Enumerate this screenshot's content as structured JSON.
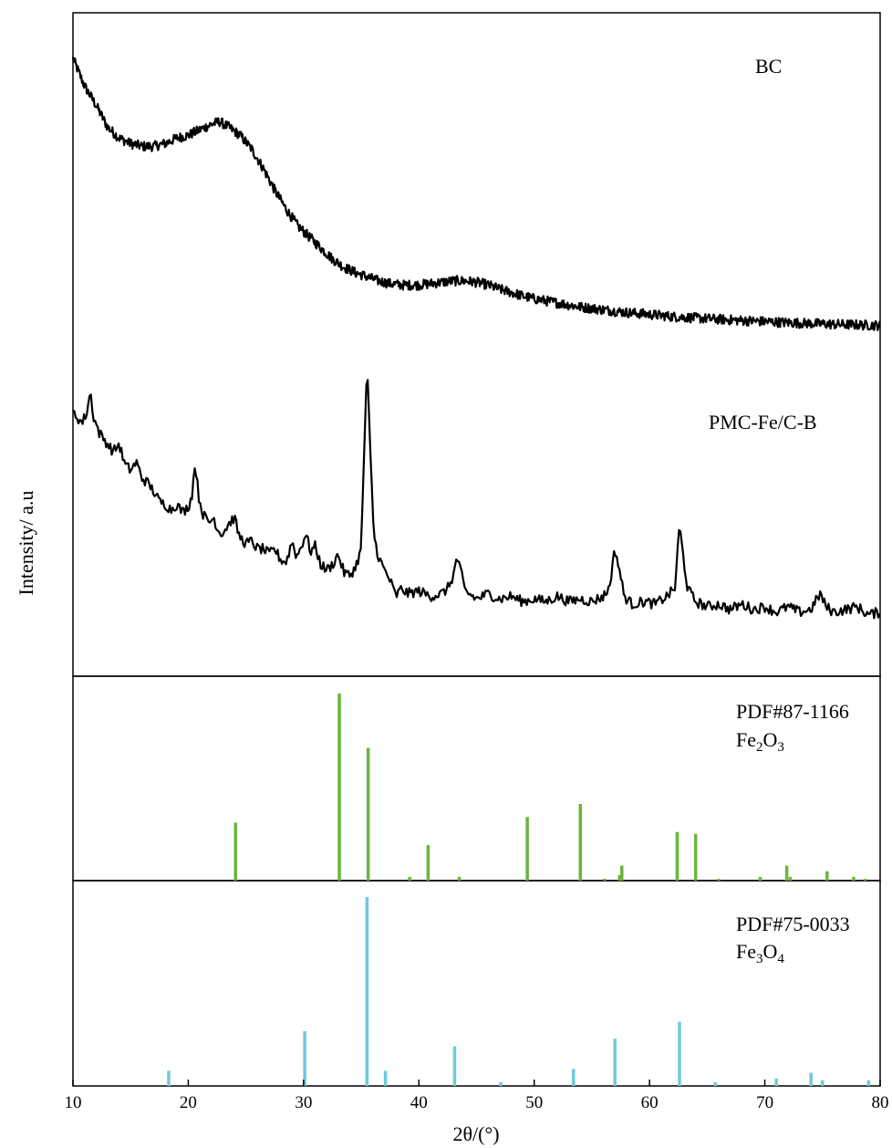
{
  "chart_data": {
    "type": "line",
    "xlabel": "2θ/(°)",
    "ylabel": "Intensity/ a.u",
    "xlim": [
      10,
      80
    ],
    "xticks": [
      10,
      20,
      30,
      40,
      50,
      60,
      70,
      80
    ],
    "grid": false,
    "colors": {
      "trace": "#000000",
      "fe2o3": "#6ab53c",
      "fe3o4": "#6ecadb"
    },
    "panels": [
      {
        "type": "line",
        "series": [
          {
            "name": "BC",
            "points": [
              [
                10.0,
                1.0
              ],
              [
                11.0,
                0.9
              ],
              [
                12.0,
                0.83
              ],
              [
                13.0,
                0.75
              ],
              [
                14.0,
                0.71
              ],
              [
                15.0,
                0.69
              ],
              [
                16.0,
                0.68
              ],
              [
                17.0,
                0.68
              ],
              [
                18.0,
                0.69
              ],
              [
                19.0,
                0.71
              ],
              [
                20.0,
                0.72
              ],
              [
                21.0,
                0.74
              ],
              [
                22.0,
                0.76
              ],
              [
                22.7,
                0.77
              ],
              [
                23.5,
                0.75
              ],
              [
                24.5,
                0.72
              ],
              [
                25.5,
                0.67
              ],
              [
                26.5,
                0.6
              ],
              [
                27.5,
                0.52
              ],
              [
                28.5,
                0.45
              ],
              [
                29.5,
                0.39
              ],
              [
                30.5,
                0.35
              ],
              [
                31.5,
                0.31
              ],
              [
                32.5,
                0.27
              ],
              [
                33.5,
                0.24
              ],
              [
                34.5,
                0.22
              ],
              [
                35.5,
                0.205
              ],
              [
                36.5,
                0.19
              ],
              [
                37.5,
                0.18
              ],
              [
                38.5,
                0.175
              ],
              [
                40.0,
                0.175
              ],
              [
                41.0,
                0.18
              ],
              [
                42.0,
                0.185
              ],
              [
                43.0,
                0.19
              ],
              [
                44.0,
                0.19
              ],
              [
                45.0,
                0.185
              ],
              [
                46.0,
                0.175
              ],
              [
                47.0,
                0.16
              ],
              [
                48.0,
                0.148
              ],
              [
                49.0,
                0.135
              ],
              [
                50.0,
                0.125
              ],
              [
                52.0,
                0.11
              ],
              [
                54.0,
                0.095
              ],
              [
                56.0,
                0.085
              ],
              [
                58.0,
                0.075
              ],
              [
                60.0,
                0.068
              ],
              [
                62.0,
                0.06
              ],
              [
                64.0,
                0.055
              ],
              [
                66.0,
                0.05
              ],
              [
                68.0,
                0.046
              ],
              [
                70.0,
                0.042
              ],
              [
                72.0,
                0.038
              ],
              [
                74.0,
                0.035
              ],
              [
                76.0,
                0.032
              ],
              [
                78.0,
                0.03
              ],
              [
                80.0,
                0.028
              ]
            ]
          },
          {
            "name": "PMC-Fe/C-B",
            "points": [
              [
                10.0,
                0.82
              ],
              [
                10.8,
                0.78
              ],
              [
                11.2,
                0.82
              ],
              [
                11.5,
                0.9
              ],
              [
                11.8,
                0.8
              ],
              [
                12.3,
                0.74
              ],
              [
                13.0,
                0.7
              ],
              [
                13.5,
                0.67
              ],
              [
                14.0,
                0.7
              ],
              [
                14.5,
                0.62
              ],
              [
                15.0,
                0.6
              ],
              [
                15.5,
                0.63
              ],
              [
                16.0,
                0.57
              ],
              [
                16.5,
                0.55
              ],
              [
                17.0,
                0.52
              ],
              [
                17.5,
                0.48
              ],
              [
                18.0,
                0.47
              ],
              [
                18.5,
                0.45
              ],
              [
                19.0,
                0.47
              ],
              [
                19.5,
                0.44
              ],
              [
                20.0,
                0.46
              ],
              [
                20.3,
                0.5
              ],
              [
                20.6,
                0.63
              ],
              [
                20.9,
                0.5
              ],
              [
                21.3,
                0.43
              ],
              [
                21.8,
                0.4
              ],
              [
                22.2,
                0.42
              ],
              [
                22.6,
                0.37
              ],
              [
                23.0,
                0.36
              ],
              [
                23.4,
                0.39
              ],
              [
                24.0,
                0.42
              ],
              [
                24.4,
                0.35
              ],
              [
                25.0,
                0.32
              ],
              [
                25.5,
                0.33
              ],
              [
                26.0,
                0.3
              ],
              [
                26.5,
                0.3
              ],
              [
                27.0,
                0.28
              ],
              [
                27.5,
                0.3
              ],
              [
                28.0,
                0.26
              ],
              [
                28.5,
                0.25
              ],
              [
                29.0,
                0.33
              ],
              [
                29.4,
                0.27
              ],
              [
                29.8,
                0.31
              ],
              [
                30.2,
                0.36
              ],
              [
                30.6,
                0.29
              ],
              [
                31.0,
                0.31
              ],
              [
                31.5,
                0.24
              ],
              [
                32.0,
                0.22
              ],
              [
                32.5,
                0.24
              ],
              [
                33.0,
                0.28
              ],
              [
                33.5,
                0.21
              ],
              [
                34.0,
                0.2
              ],
              [
                34.5,
                0.23
              ],
              [
                35.0,
                0.3
              ],
              [
                35.2,
                0.6
              ],
              [
                35.5,
                1.0
              ],
              [
                35.8,
                0.65
              ],
              [
                36.1,
                0.35
              ],
              [
                36.5,
                0.27
              ],
              [
                37.0,
                0.22
              ],
              [
                37.5,
                0.18
              ],
              [
                38.0,
                0.12
              ],
              [
                38.5,
                0.15
              ],
              [
                39.0,
                0.13
              ],
              [
                40.0,
                0.14
              ],
              [
                41.0,
                0.12
              ],
              [
                42.0,
                0.13
              ],
              [
                42.5,
                0.15
              ],
              [
                43.0,
                0.2
              ],
              [
                43.3,
                0.27
              ],
              [
                43.7,
                0.2
              ],
              [
                44.0,
                0.14
              ],
              [
                45.0,
                0.11
              ],
              [
                46.0,
                0.13
              ],
              [
                47.0,
                0.11
              ],
              [
                48.0,
                0.12
              ],
              [
                49.0,
                0.1
              ],
              [
                50.0,
                0.11
              ],
              [
                51.0,
                0.1
              ],
              [
                52.0,
                0.12
              ],
              [
                53.0,
                0.1
              ],
              [
                54.0,
                0.11
              ],
              [
                55.0,
                0.1
              ],
              [
                56.0,
                0.12
              ],
              [
                56.5,
                0.15
              ],
              [
                57.0,
                0.3
              ],
              [
                57.4,
                0.22
              ],
              [
                57.8,
                0.12
              ],
              [
                58.5,
                0.09
              ],
              [
                59.5,
                0.1
              ],
              [
                60.5,
                0.09
              ],
              [
                61.5,
                0.12
              ],
              [
                62.2,
                0.15
              ],
              [
                62.6,
                0.39
              ],
              [
                62.9,
                0.28
              ],
              [
                63.3,
                0.15
              ],
              [
                64.0,
                0.1
              ],
              [
                65.0,
                0.08
              ],
              [
                66.0,
                0.09
              ],
              [
                67.0,
                0.07
              ],
              [
                68.0,
                0.09
              ],
              [
                69.0,
                0.07
              ],
              [
                70.0,
                0.08
              ],
              [
                71.0,
                0.06
              ],
              [
                72.0,
                0.08
              ],
              [
                73.0,
                0.06
              ],
              [
                74.0,
                0.07
              ],
              [
                74.8,
                0.13
              ],
              [
                75.3,
                0.08
              ],
              [
                76.0,
                0.06
              ],
              [
                77.0,
                0.07
              ],
              [
                78.0,
                0.08
              ],
              [
                79.0,
                0.05
              ],
              [
                80.0,
                0.06
              ]
            ]
          }
        ]
      },
      {
        "type": "bar",
        "series": [
          {
            "name": "PDF#87-1166 Fe2O3",
            "peaks": [
              [
                24.1,
                0.31
              ],
              [
                33.1,
                1.0
              ],
              [
                35.6,
                0.71
              ],
              [
                39.2,
                0.02
              ],
              [
                40.8,
                0.19
              ],
              [
                43.5,
                0.02
              ],
              [
                49.4,
                0.34
              ],
              [
                54.0,
                0.41
              ],
              [
                56.1,
                0.01
              ],
              [
                57.4,
                0.03
              ],
              [
                57.6,
                0.08
              ],
              [
                62.4,
                0.26
              ],
              [
                64.0,
                0.25
              ],
              [
                66.0,
                0.01
              ],
              [
                69.6,
                0.02
              ],
              [
                71.9,
                0.08
              ],
              [
                72.2,
                0.02
              ],
              [
                75.4,
                0.05
              ],
              [
                77.7,
                0.02
              ],
              [
                78.7,
                0.01
              ]
            ]
          },
          {
            "name": "PDF#75-0033 Fe3O4",
            "peaks": [
              [
                18.3,
                0.08
              ],
              [
                30.1,
                0.29
              ],
              [
                35.5,
                1.0
              ],
              [
                37.1,
                0.08
              ],
              [
                43.1,
                0.21
              ],
              [
                47.1,
                0.02
              ],
              [
                53.4,
                0.09
              ],
              [
                57.0,
                0.25
              ],
              [
                62.6,
                0.34
              ],
              [
                65.7,
                0.02
              ],
              [
                71.0,
                0.04
              ],
              [
                74.0,
                0.07
              ],
              [
                75.0,
                0.03
              ],
              [
                79.0,
                0.03
              ]
            ]
          }
        ]
      }
    ]
  },
  "labels": {
    "bc": "BC",
    "pmc": "PMC-Fe/C-B",
    "fe2o3_pdf": "PDF#87-1166",
    "fe2o3_formula": {
      "p1": "Fe",
      "s1": "2",
      "p2": "O",
      "s2": "3"
    },
    "fe3o4_pdf": "PDF#75-0033",
    "fe3o4_formula": {
      "p1": "Fe",
      "s1": "3",
      "p2": "O",
      "s2": "4"
    }
  }
}
